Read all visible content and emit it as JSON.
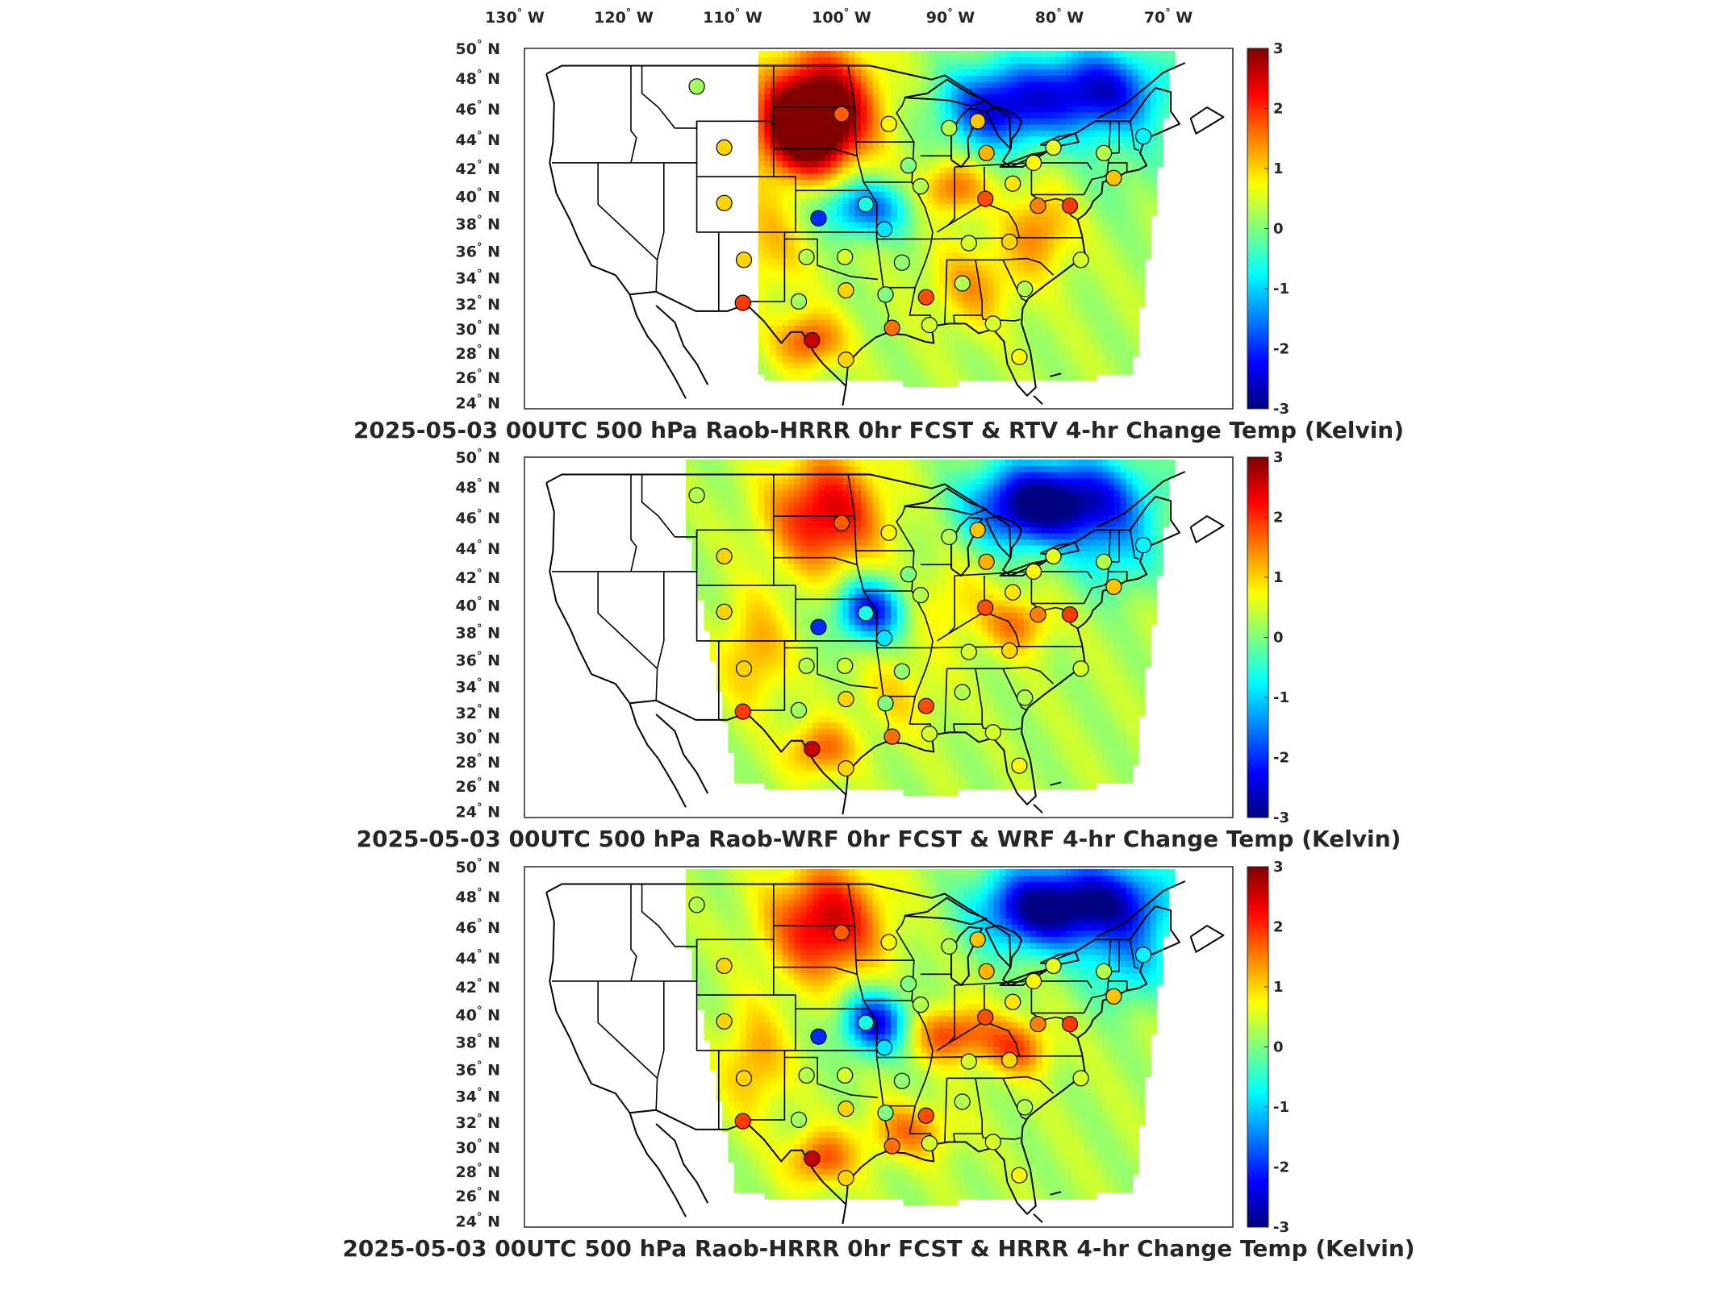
{
  "figure": {
    "longitude_labels": [
      "130",
      "120",
      "110",
      "100",
      "90",
      "80",
      "70"
    ],
    "longitude_hemisphere": "W",
    "latitude_labels": [
      "50",
      "48",
      "46",
      "44",
      "42",
      "40",
      "38",
      "36",
      "34",
      "32",
      "30",
      "28",
      "26",
      "24"
    ],
    "latitude_hemisphere": "N",
    "degree_symbol": "°"
  },
  "panels": [
    {
      "title": "2025-05-03 00UTC 500 hPa Raob-HRRR 0hr FCST & RTV 4-hr Change Temp (Kelvin)",
      "colorbar": {
        "ticks": [
          "3",
          "2",
          "1",
          "0",
          "-1",
          "-2",
          "-3"
        ],
        "colormap": "jet",
        "range": [
          -3,
          3
        ]
      },
      "field": "rtv"
    },
    {
      "title": "2025-05-03 00UTC 500 hPa Raob-WRF 0hr FCST & WRF 4-hr Change Temp (Kelvin)",
      "colorbar": {
        "ticks": [
          "3",
          "2",
          "1",
          "0",
          "-1",
          "-2",
          "-3"
        ],
        "colormap": "jet",
        "range": [
          -3,
          3
        ]
      },
      "field": "wrf"
    },
    {
      "title": "2025-05-03 00UTC 500 hPa Raob-HRRR 0hr FCST & HRRR 4-hr Change Temp (Kelvin)",
      "colorbar": {
        "ticks": [
          "3",
          "2",
          "1",
          "0",
          "-1",
          "-2",
          "-3"
        ],
        "colormap": "jet",
        "range": [
          -3,
          3
        ]
      },
      "field": "hrrr"
    }
  ],
  "raob_stations": [
    {
      "lon": -111.0,
      "lat": 47.5,
      "values": [
        0.2,
        0.3,
        0.3
      ]
    },
    {
      "lon": -108.5,
      "lat": 43.1,
      "values": [
        1.0,
        1.0,
        1.0
      ]
    },
    {
      "lon": -108.5,
      "lat": 39.1,
      "values": [
        1.0,
        1.0,
        1.0
      ]
    },
    {
      "lon": -106.7,
      "lat": 35.0,
      "values": [
        1.0,
        1.0,
        1.0
      ]
    },
    {
      "lon": -106.8,
      "lat": 31.9,
      "values": [
        1.9,
        1.9,
        1.9
      ]
    },
    {
      "lon": -101.0,
      "lat": 35.2,
      "values": [
        0.3,
        0.3,
        0.3
      ]
    },
    {
      "lon": -101.7,
      "lat": 32.0,
      "values": [
        0.2,
        0.2,
        0.2
      ]
    },
    {
      "lon": -100.5,
      "lat": 29.2,
      "values": [
        2.6,
        2.6,
        2.6
      ]
    },
    {
      "lon": -97.4,
      "lat": 27.8,
      "values": [
        1.0,
        1.0,
        1.0
      ]
    },
    {
      "lon": -97.5,
      "lat": 35.2,
      "values": [
        0.5,
        0.5,
        0.5
      ]
    },
    {
      "lon": -97.4,
      "lat": 32.8,
      "values": [
        1.0,
        1.0,
        1.0
      ]
    },
    {
      "lon": -95.6,
      "lat": 39.0,
      "values": [
        -0.6,
        -0.6,
        -0.6
      ]
    },
    {
      "lon": -99.9,
      "lat": 38.0,
      "values": [
        -2.0,
        -2.0,
        -2.0
      ]
    },
    {
      "lon": -97.8,
      "lat": 45.5,
      "values": [
        1.7,
        1.7,
        1.7
      ]
    },
    {
      "lon": -93.5,
      "lat": 44.8,
      "values": [
        0.8,
        0.8,
        0.8
      ]
    },
    {
      "lon": -93.9,
      "lat": 37.2,
      "values": [
        -0.9,
        -0.9,
        -0.9
      ]
    },
    {
      "lon": -92.3,
      "lat": 34.8,
      "values": [
        0.1,
        0.1,
        0.1
      ]
    },
    {
      "lon": -93.8,
      "lat": 32.5,
      "values": [
        0.0,
        0.0,
        0.0
      ]
    },
    {
      "lon": -93.2,
      "lat": 30.1,
      "values": [
        1.6,
        1.6,
        1.6
      ]
    },
    {
      "lon": -90.1,
      "lat": 32.3,
      "values": [
        1.8,
        1.8,
        1.8
      ]
    },
    {
      "lon": -89.8,
      "lat": 30.3,
      "values": [
        0.5,
        0.5,
        0.5
      ]
    },
    {
      "lon": -90.6,
      "lat": 40.3,
      "values": [
        0.3,
        0.3,
        0.3
      ]
    },
    {
      "lon": -91.7,
      "lat": 41.8,
      "values": [
        0.0,
        0.0,
        0.0
      ]
    },
    {
      "lon": -88.0,
      "lat": 44.5,
      "values": [
        0.3,
        0.3,
        0.3
      ]
    },
    {
      "lon": -86.2,
      "lat": 36.2,
      "values": [
        0.5,
        0.5,
        0.5
      ]
    },
    {
      "lon": -86.8,
      "lat": 33.3,
      "values": [
        0.3,
        0.3,
        0.3
      ]
    },
    {
      "lon": -84.6,
      "lat": 42.7,
      "values": [
        1.2,
        1.2,
        1.2
      ]
    },
    {
      "lon": -85.4,
      "lat": 45.0,
      "values": [
        1.1,
        1.1,
        1.1
      ]
    },
    {
      "lon": -84.7,
      "lat": 39.4,
      "values": [
        1.8,
        1.8,
        1.8
      ]
    },
    {
      "lon": -84.0,
      "lat": 30.4,
      "values": [
        0.5,
        0.5,
        0.5
      ]
    },
    {
      "lon": -81.6,
      "lat": 28.0,
      "values": [
        0.8,
        0.8,
        0.8
      ]
    },
    {
      "lon": -81.1,
      "lat": 32.9,
      "values": [
        0.3,
        0.3,
        0.3
      ]
    },
    {
      "lon": -82.5,
      "lat": 36.3,
      "values": [
        1.0,
        1.0,
        1.0
      ]
    },
    {
      "lon": -82.2,
      "lat": 40.5,
      "values": [
        0.9,
        0.9,
        0.9
      ]
    },
    {
      "lon": -79.9,
      "lat": 38.9,
      "values": [
        1.5,
        1.5,
        1.5
      ]
    },
    {
      "lon": -80.3,
      "lat": 42.0,
      "values": [
        0.8,
        0.8,
        0.8
      ]
    },
    {
      "lon": -77.0,
      "lat": 38.9,
      "values": [
        1.9,
        1.9,
        1.9
      ]
    },
    {
      "lon": -78.5,
      "lat": 43.1,
      "values": [
        0.6,
        0.6,
        0.6
      ]
    },
    {
      "lon": -76.0,
      "lat": 35.0,
      "values": [
        0.5,
        0.5,
        0.5
      ]
    },
    {
      "lon": -73.9,
      "lat": 42.7,
      "values": [
        0.3,
        0.3,
        0.3
      ]
    },
    {
      "lon": -73.0,
      "lat": 40.9,
      "values": [
        1.1,
        1.1,
        1.1
      ]
    },
    {
      "lon": -70.3,
      "lat": 43.9,
      "values": [
        -0.8,
        -0.8,
        -0.8
      ]
    }
  ]
}
